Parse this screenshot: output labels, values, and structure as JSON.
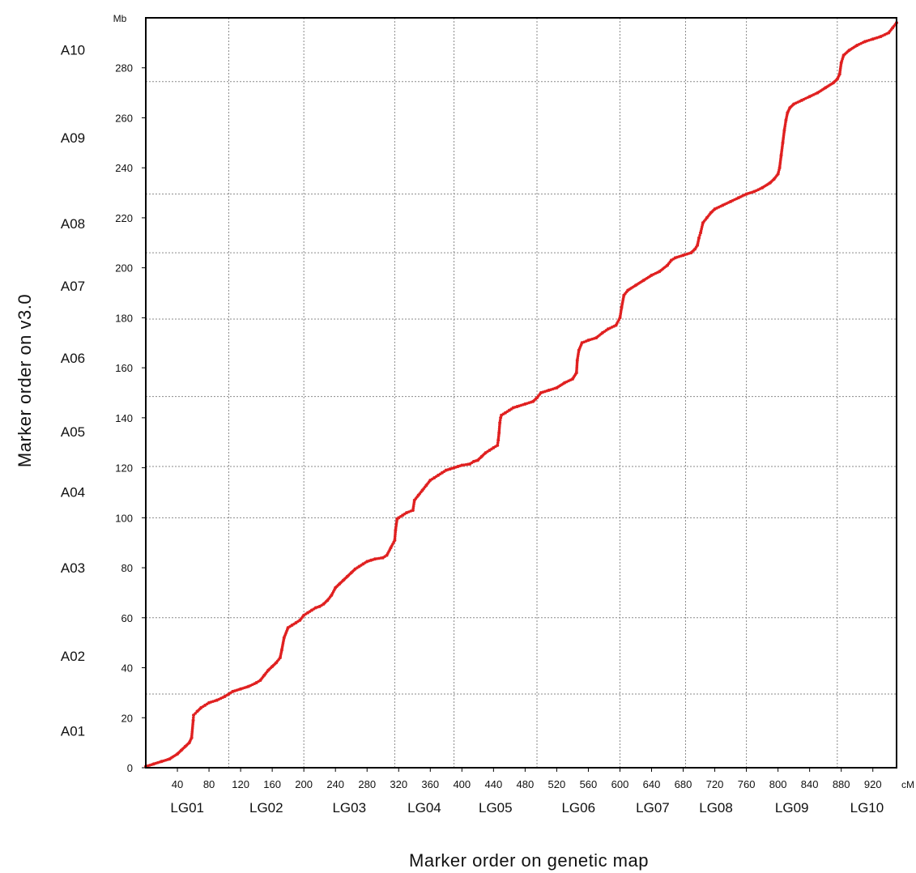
{
  "chart_data": {
    "type": "scatter",
    "title": "",
    "xlabel": "Marker order on genetic map",
    "ylabel": "Marker order on v3.0",
    "x_unit": "cM",
    "y_unit": "Mb",
    "xlim": [
      0,
      950
    ],
    "ylim": [
      0,
      300
    ],
    "x_ticks": [
      40,
      80,
      120,
      160,
      200,
      240,
      280,
      320,
      360,
      400,
      440,
      480,
      520,
      560,
      600,
      640,
      680,
      720,
      760,
      800,
      840,
      880,
      920
    ],
    "y_ticks": [
      0,
      20,
      40,
      60,
      80,
      100,
      120,
      140,
      160,
      180,
      200,
      220,
      240,
      260,
      280
    ],
    "linkage_groups": [
      {
        "label": "LG01",
        "start": 0,
        "end": 105
      },
      {
        "label": "LG02",
        "start": 105,
        "end": 200
      },
      {
        "label": "LG03",
        "start": 200,
        "end": 315
      },
      {
        "label": "LG04",
        "start": 315,
        "end": 390
      },
      {
        "label": "LG05",
        "start": 390,
        "end": 495
      },
      {
        "label": "LG06",
        "start": 495,
        "end": 600
      },
      {
        "label": "LG07",
        "start": 600,
        "end": 683
      },
      {
        "label": "LG08",
        "start": 683,
        "end": 760
      },
      {
        "label": "LG09",
        "start": 760,
        "end": 875
      },
      {
        "label": "LG10",
        "start": 875,
        "end": 950
      }
    ],
    "chromosomes": [
      {
        "label": "A01",
        "start": 0,
        "end": 29.5
      },
      {
        "label": "A02",
        "start": 29.5,
        "end": 60
      },
      {
        "label": "A03",
        "start": 60,
        "end": 100
      },
      {
        "label": "A04",
        "start": 100,
        "end": 120.5
      },
      {
        "label": "A05",
        "start": 120.5,
        "end": 148.5
      },
      {
        "label": "A06",
        "start": 148.5,
        "end": 179.5
      },
      {
        "label": "A07",
        "start": 179.5,
        "end": 206
      },
      {
        "label": "A08",
        "start": 206,
        "end": 229.5
      },
      {
        "label": "A09",
        "start": 229.5,
        "end": 274.5
      },
      {
        "label": "A10",
        "start": 274.5,
        "end": 300
      }
    ],
    "series": [
      {
        "color": "#e02020",
        "points": [
          [
            0,
            0.5
          ],
          [
            10,
            1.5
          ],
          [
            20,
            2.5
          ],
          [
            30,
            3.5
          ],
          [
            40,
            5.5
          ],
          [
            45,
            7
          ],
          [
            50,
            8.5
          ],
          [
            55,
            10
          ],
          [
            58,
            12
          ],
          [
            60,
            19
          ],
          [
            60.5,
            21
          ],
          [
            65,
            22.5
          ],
          [
            70,
            24
          ],
          [
            75,
            25
          ],
          [
            80,
            26
          ],
          [
            90,
            27
          ],
          [
            100,
            28.5
          ],
          [
            105,
            29.5
          ],
          [
            110,
            30.5
          ],
          [
            120,
            31.5
          ],
          [
            130,
            32.5
          ],
          [
            140,
            34
          ],
          [
            145,
            35
          ],
          [
            150,
            37
          ],
          [
            155,
            39
          ],
          [
            160,
            40.5
          ],
          [
            165,
            42
          ],
          [
            170,
            44
          ],
          [
            172,
            47
          ],
          [
            175,
            52
          ],
          [
            180,
            56
          ],
          [
            185,
            57
          ],
          [
            190,
            58
          ],
          [
            195,
            59
          ],
          [
            200,
            61
          ],
          [
            205,
            62
          ],
          [
            210,
            63
          ],
          [
            215,
            64
          ],
          [
            220,
            64.5
          ],
          [
            225,
            65.5
          ],
          [
            230,
            67
          ],
          [
            235,
            69
          ],
          [
            240,
            72
          ],
          [
            245,
            73.5
          ],
          [
            250,
            75
          ],
          [
            255,
            76.5
          ],
          [
            260,
            78
          ],
          [
            265,
            79.5
          ],
          [
            270,
            80.5
          ],
          [
            275,
            81.5
          ],
          [
            280,
            82.5
          ],
          [
            285,
            83
          ],
          [
            290,
            83.5
          ],
          [
            300,
            84
          ],
          [
            305,
            85
          ],
          [
            310,
            88
          ],
          [
            315,
            91
          ],
          [
            316,
            95
          ],
          [
            318,
            99.5
          ],
          [
            320,
            100
          ],
          [
            325,
            101
          ],
          [
            330,
            102
          ],
          [
            338,
            103
          ],
          [
            340,
            107
          ],
          [
            345,
            109
          ],
          [
            350,
            111
          ],
          [
            355,
            113
          ],
          [
            360,
            115
          ],
          [
            365,
            116
          ],
          [
            370,
            117
          ],
          [
            375,
            118
          ],
          [
            380,
            119
          ],
          [
            385,
            119.5
          ],
          [
            390,
            120
          ],
          [
            395,
            120.5
          ],
          [
            400,
            121
          ],
          [
            410,
            121.5
          ],
          [
            415,
            122.5
          ],
          [
            420,
            123
          ],
          [
            425,
            124.5
          ],
          [
            430,
            126
          ],
          [
            435,
            127
          ],
          [
            440,
            128
          ],
          [
            445,
            129
          ],
          [
            446,
            131
          ],
          [
            447,
            134
          ],
          [
            448,
            138
          ],
          [
            449,
            140
          ],
          [
            450,
            141
          ],
          [
            455,
            142
          ],
          [
            460,
            143
          ],
          [
            465,
            144
          ],
          [
            470,
            144.5
          ],
          [
            480,
            145.5
          ],
          [
            490,
            146.5
          ],
          [
            495,
            148
          ],
          [
            500,
            150
          ],
          [
            510,
            151
          ],
          [
            520,
            152
          ],
          [
            530,
            154
          ],
          [
            540,
            155.5
          ],
          [
            545,
            158
          ],
          [
            546,
            163
          ],
          [
            548,
            167
          ],
          [
            552,
            170
          ],
          [
            560,
            171
          ],
          [
            570,
            172
          ],
          [
            578,
            174
          ],
          [
            585,
            175.5
          ],
          [
            595,
            177
          ],
          [
            600,
            180
          ],
          [
            602,
            184
          ],
          [
            605,
            189
          ],
          [
            610,
            191
          ],
          [
            620,
            193
          ],
          [
            630,
            195
          ],
          [
            640,
            197
          ],
          [
            650,
            198.5
          ],
          [
            660,
            201
          ],
          [
            665,
            203
          ],
          [
            670,
            204
          ],
          [
            680,
            205
          ],
          [
            690,
            206
          ],
          [
            695,
            207.5
          ],
          [
            698,
            209
          ],
          [
            700,
            212
          ],
          [
            702,
            214
          ],
          [
            705,
            218
          ],
          [
            710,
            220
          ],
          [
            715,
            222
          ],
          [
            720,
            223.5
          ],
          [
            730,
            225
          ],
          [
            740,
            226.5
          ],
          [
            750,
            228
          ],
          [
            760,
            229.5
          ],
          [
            770,
            230.5
          ],
          [
            780,
            232
          ],
          [
            790,
            234
          ],
          [
            795,
            235.5
          ],
          [
            800,
            237.5
          ],
          [
            802,
            240
          ],
          [
            804,
            245
          ],
          [
            806,
            250
          ],
          [
            808,
            255
          ],
          [
            810,
            259
          ],
          [
            812,
            262
          ],
          [
            815,
            264
          ],
          [
            820,
            265.5
          ],
          [
            830,
            267
          ],
          [
            840,
            268.5
          ],
          [
            850,
            270
          ],
          [
            860,
            272
          ],
          [
            870,
            274
          ],
          [
            875,
            275.5
          ],
          [
            878,
            277.5
          ],
          [
            880,
            282
          ],
          [
            883,
            285
          ],
          [
            890,
            287
          ],
          [
            900,
            289
          ],
          [
            910,
            290.5
          ],
          [
            920,
            291.5
          ],
          [
            930,
            292.5
          ],
          [
            940,
            294
          ],
          [
            945,
            296
          ],
          [
            950,
            298
          ]
        ]
      }
    ]
  }
}
